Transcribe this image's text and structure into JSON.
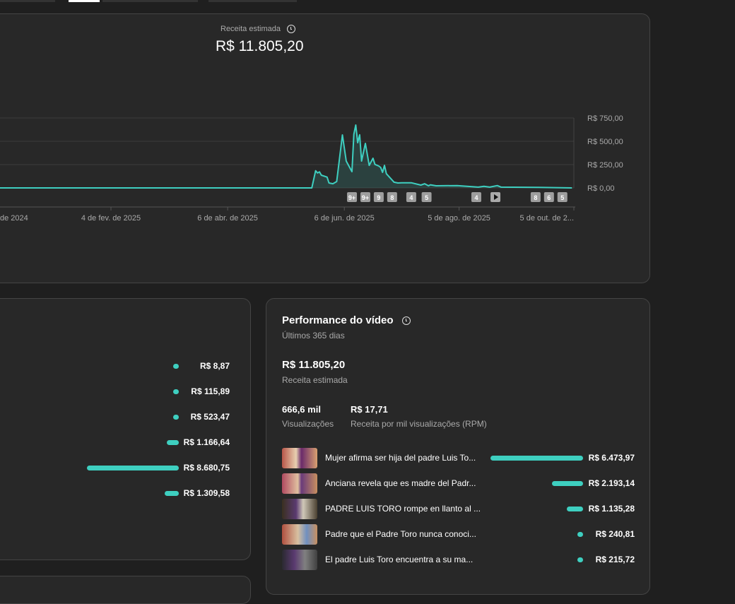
{
  "top_tabs": {
    "active_index": 1
  },
  "revenue_chart": {
    "metric_label": "Receita estimada",
    "metric_value": "R$ 11.805,20",
    "info_icon": "clock-icon",
    "accent_color": "#3ecfc0"
  },
  "chart_data": {
    "type": "area",
    "xlim": [
      "2024-12-08",
      "2025-10-04"
    ],
    "ylim": [
      0,
      750
    ],
    "grid": true,
    "y_ticks": [
      {
        "value": 750,
        "label": "R$ 750,00"
      },
      {
        "value": 500,
        "label": "R$ 500,00"
      },
      {
        "value": 250,
        "label": "R$ 250,00"
      },
      {
        "value": 0,
        "label": "R$ 0,00"
      }
    ],
    "x_ticks": [
      {
        "date": "2024-12-08",
        "label": "de 2024",
        "clipped": true
      },
      {
        "date": "2025-02-04",
        "label": "4 de fev. de 2025"
      },
      {
        "date": "2025-04-06",
        "label": "6 de abr. de 2025"
      },
      {
        "date": "2025-06-06",
        "label": "6 de jun. de 2025"
      },
      {
        "date": "2025-08-05",
        "label": "5 de ago. de 2025"
      },
      {
        "date": "2025-10-04",
        "label": "5 de out. de 2..."
      }
    ],
    "series": [
      {
        "points": [
          [
            "2024-12-08",
            0
          ],
          [
            "2025-05-20",
            0
          ],
          [
            "2025-05-22",
            184
          ],
          [
            "2025-05-23",
            160
          ],
          [
            "2025-05-24",
            172
          ],
          [
            "2025-05-25",
            136
          ],
          [
            "2025-05-28",
            116
          ],
          [
            "2025-05-29",
            53
          ],
          [
            "2025-05-31",
            45
          ],
          [
            "2025-06-02",
            68
          ],
          [
            "2025-06-05",
            568
          ],
          [
            "2025-06-07",
            288
          ],
          [
            "2025-06-10",
            174
          ],
          [
            "2025-06-11",
            576
          ],
          [
            "2025-06-12",
            674
          ],
          [
            "2025-06-13",
            485
          ],
          [
            "2025-06-14",
            570
          ],
          [
            "2025-06-15",
            288
          ],
          [
            "2025-06-17",
            477
          ],
          [
            "2025-06-19",
            242
          ],
          [
            "2025-06-21",
            318
          ],
          [
            "2025-06-22",
            252
          ],
          [
            "2025-06-24",
            235
          ],
          [
            "2025-06-25",
            220
          ],
          [
            "2025-06-26",
            167
          ],
          [
            "2025-06-27",
            242
          ],
          [
            "2025-06-28",
            152
          ],
          [
            "2025-07-02",
            61
          ],
          [
            "2025-07-04",
            53
          ],
          [
            "2025-07-06",
            55
          ],
          [
            "2025-07-11",
            55
          ],
          [
            "2025-07-16",
            30
          ],
          [
            "2025-07-18",
            45
          ],
          [
            "2025-07-20",
            23
          ],
          [
            "2025-07-21",
            33
          ],
          [
            "2025-07-24",
            23
          ],
          [
            "2025-08-04",
            25
          ],
          [
            "2025-08-15",
            8
          ],
          [
            "2025-08-18",
            17
          ],
          [
            "2025-08-21",
            8
          ],
          [
            "2025-08-25",
            25
          ],
          [
            "2025-08-27",
            8
          ],
          [
            "2025-09-15",
            6
          ],
          [
            "2025-10-03",
            0
          ]
        ]
      }
    ],
    "markers": [
      {
        "date": "2025-06-10",
        "label": "9+"
      },
      {
        "date": "2025-06-17",
        "label": "9+"
      },
      {
        "date": "2025-06-24",
        "label": "9"
      },
      {
        "date": "2025-07-01",
        "label": "8"
      },
      {
        "date": "2025-07-11",
        "label": "4"
      },
      {
        "date": "2025-07-19",
        "label": "5"
      },
      {
        "date": "2025-08-14",
        "label": "4"
      },
      {
        "date": "2025-08-24",
        "label": "▶",
        "icon": "play-icon"
      },
      {
        "date": "2025-09-14",
        "label": "8"
      },
      {
        "date": "2025-09-21",
        "label": "6"
      },
      {
        "date": "2025-09-28",
        "label": "5"
      }
    ]
  },
  "left_panel": {
    "rows": [
      {
        "value": 8.87,
        "label": "R$ 8,87"
      },
      {
        "value": 115.89,
        "label": "R$ 115,89"
      },
      {
        "value": 523.47,
        "label": "R$ 523,47"
      },
      {
        "value": 1166.64,
        "label": "R$ 1.166,64"
      },
      {
        "value": 8680.75,
        "label": "R$ 8.680,75"
      },
      {
        "value": 1309.58,
        "label": "R$ 1.309,58"
      }
    ]
  },
  "performance": {
    "title": "Performance do vídeo",
    "subtitle": "Últimos 365 dias",
    "revenue_value": "R$ 11.805,20",
    "revenue_label": "Receita estimada",
    "views_value": "666,6 mil",
    "views_label": "Visualizações",
    "rpm_value": "R$ 17,71",
    "rpm_label": "Receita por mil visualizações (RPM)",
    "videos": [
      {
        "title": "Mujer afirma ser hija del padre Luis To...",
        "value": 6473.97,
        "label": "R$ 6.473,97"
      },
      {
        "title": "Anciana revela que es madre del Padr...",
        "value": 2193.14,
        "label": "R$ 2.193,14"
      },
      {
        "title": "PADRE LUIS TORO rompe en llanto al ...",
        "value": 1135.28,
        "label": "R$ 1.135,28"
      },
      {
        "title": "Padre que el Padre Toro nunca conoci...",
        "value": 240.81,
        "label": "R$ 240,81"
      },
      {
        "title": "El padre Luis Toro encuentra a su ma...",
        "value": 215.72,
        "label": "R$ 215,72"
      }
    ]
  }
}
